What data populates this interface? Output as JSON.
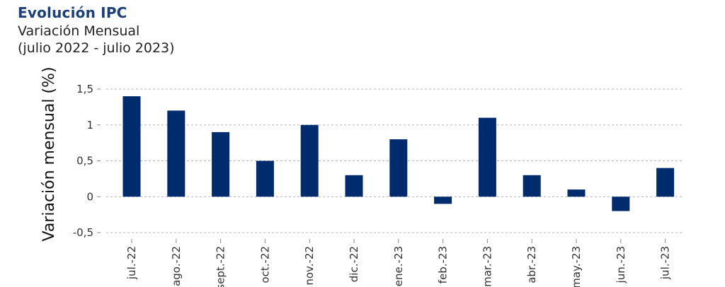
{
  "header": {
    "title": "Evolución IPC",
    "subtitle": "Variación Mensual",
    "period": "(julio 2022 - julio 2023)"
  },
  "chart_data": {
    "type": "bar",
    "categories": [
      "jul.-22",
      "ago.-22",
      "sept.-22",
      "oct.-22",
      "nov.-22",
      "dic.-22",
      "ene.-23",
      "feb.-23",
      "mar.-23",
      "abr.-23",
      "may.-23",
      "jun.-23",
      "jul.-23"
    ],
    "series": [
      {
        "values": [
          1.4,
          1.2,
          0.9,
          0.5,
          1.0,
          0.3,
          0.8,
          -0.1,
          1.1,
          0.3,
          0.1,
          -0.2,
          0.4
        ]
      }
    ],
    "ylabel": "Variación mensual (%)",
    "xlabel": "",
    "ylim": [
      -0.5,
      1.5
    ],
    "yticks": [
      -0.5,
      0,
      0.5,
      1,
      1.5
    ],
    "ytick_labels": [
      "-0,5",
      "0",
      "0,5",
      "1",
      "1,5"
    ],
    "grid": true,
    "bar_color": "#002c6e",
    "grid_color": "#b5b5b5"
  }
}
